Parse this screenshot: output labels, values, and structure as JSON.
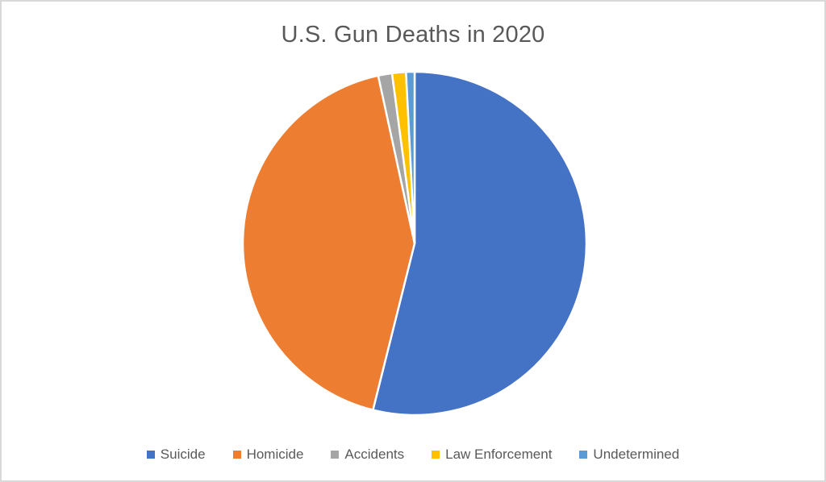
{
  "page": {
    "background": "#ffffff",
    "frame_border_color": "#d9d9d9"
  },
  "chart_data": {
    "type": "pie",
    "title": "U.S. Gun Deaths in 2020",
    "title_color": "#595959",
    "categories": [
      "Suicide",
      "Homicide",
      "Accidents",
      "Law Enforcement",
      "Undetermined"
    ],
    "values": [
      53.9,
      42.7,
      1.3,
      1.3,
      0.8
    ],
    "unit": "percent_share_estimated_from_pie",
    "colors": [
      "#4472C4",
      "#ED7D31",
      "#A5A5A5",
      "#FFC000",
      "#5B9BD5"
    ],
    "start_angle_deg": 0,
    "direction": "clockwise",
    "slice_border_color": "#FFFFFF",
    "legend_position": "bottom",
    "legend_text_color": "#595959",
    "grid": false
  }
}
